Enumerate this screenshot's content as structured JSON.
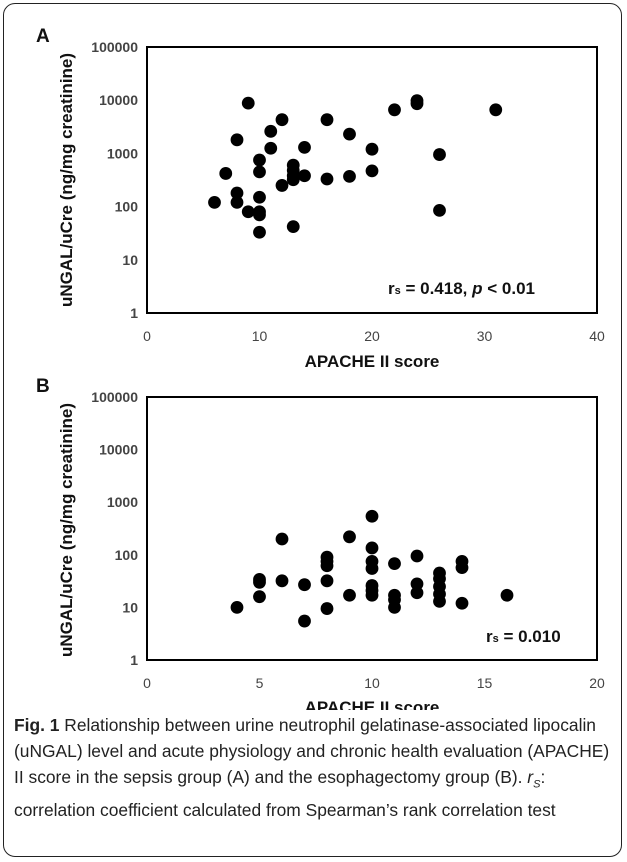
{
  "chart_data": [
    {
      "panel_label": "A",
      "type": "scatter",
      "xlabel": "APACHE II score",
      "ylabel": "uNGAL/uCre (ng/mg creatinine)",
      "xlim": [
        0,
        40
      ],
      "ylim": [
        1,
        100000
      ],
      "y_scale": "log",
      "x_ticks": [
        "0",
        "10",
        "20",
        "30",
        "40"
      ],
      "y_ticks": [
        "1",
        "10",
        "100",
        "1000",
        "10000",
        "100000"
      ],
      "grid": false,
      "annotation": {
        "prefix": "r",
        "subscript": "s",
        "middle": " = 0.418, ",
        "p": "p",
        "suffix": " < 0.01"
      },
      "points": [
        [
          6,
          120
        ],
        [
          7,
          420
        ],
        [
          8,
          1800
        ],
        [
          8,
          180
        ],
        [
          8,
          120
        ],
        [
          9,
          8800
        ],
        [
          9,
          80
        ],
        [
          10,
          750
        ],
        [
          10,
          450
        ],
        [
          10,
          150
        ],
        [
          10,
          80
        ],
        [
          10,
          70
        ],
        [
          10,
          33
        ],
        [
          11,
          2600
        ],
        [
          11,
          1250
        ],
        [
          12,
          4300
        ],
        [
          12,
          250
        ],
        [
          13,
          600
        ],
        [
          13,
          480
        ],
        [
          13,
          380
        ],
        [
          13,
          320
        ],
        [
          13,
          42
        ],
        [
          14,
          1300
        ],
        [
          14,
          380
        ],
        [
          16,
          4300
        ],
        [
          16,
          330
        ],
        [
          18,
          2300
        ],
        [
          18,
          370
        ],
        [
          20,
          1200
        ],
        [
          20,
          470
        ],
        [
          22,
          6600
        ],
        [
          24,
          9800
        ],
        [
          24,
          8600
        ],
        [
          26,
          950
        ],
        [
          26,
          85
        ],
        [
          31,
          6600
        ]
      ]
    },
    {
      "panel_label": "B",
      "type": "scatter",
      "xlabel": "APACHE II score",
      "ylabel": "uNGAL/uCre (ng/mg creatinine)",
      "xlim": [
        0,
        20
      ],
      "ylim": [
        1,
        100000
      ],
      "y_scale": "log",
      "x_ticks": [
        "0",
        "5",
        "10",
        "15",
        "20"
      ],
      "y_ticks": [
        "1",
        "10",
        "100",
        "1000",
        "10000",
        "100000"
      ],
      "grid": false,
      "annotation": {
        "prefix": "r",
        "subscript": "s",
        "middle": " = 0.010",
        "p": "",
        "suffix": ""
      },
      "points": [
        [
          4,
          10
        ],
        [
          5,
          34
        ],
        [
          5,
          30
        ],
        [
          5,
          16
        ],
        [
          6,
          200
        ],
        [
          6,
          32
        ],
        [
          7,
          27
        ],
        [
          7,
          5.5
        ],
        [
          8,
          90
        ],
        [
          8,
          75
        ],
        [
          8,
          62
        ],
        [
          8,
          32
        ],
        [
          8,
          9.5
        ],
        [
          9,
          220
        ],
        [
          9,
          17
        ],
        [
          10,
          540
        ],
        [
          10,
          135
        ],
        [
          10,
          75
        ],
        [
          10,
          55
        ],
        [
          10,
          26
        ],
        [
          10,
          21
        ],
        [
          10,
          17
        ],
        [
          11,
          68
        ],
        [
          11,
          17
        ],
        [
          11,
          14
        ],
        [
          11,
          10
        ],
        [
          12,
          95
        ],
        [
          12,
          28
        ],
        [
          12,
          19
        ],
        [
          13,
          45
        ],
        [
          13,
          35
        ],
        [
          13,
          25
        ],
        [
          13,
          18
        ],
        [
          13,
          13
        ],
        [
          14,
          75
        ],
        [
          14,
          57
        ],
        [
          14,
          12
        ],
        [
          16,
          17
        ]
      ]
    }
  ],
  "caption": {
    "fig_label": "Fig. 1",
    "text1": " Relationship between urine neutrophil gelatinase-associated lipocalin (uNGAL) level and acute physiology and chronic health evaluation (APACHE) II score in the sepsis group (A) and the esophagectomy group (B). ",
    "r_symbol": "r",
    "r_sub": "S",
    "text2": ": correlation coefficient calculated from Spearman’s rank correlation test"
  }
}
